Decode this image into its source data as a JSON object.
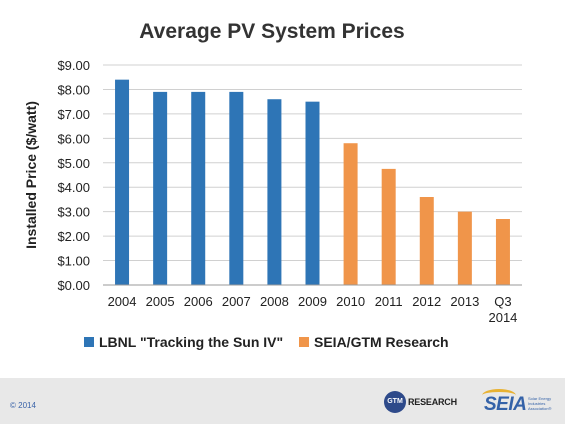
{
  "chart_data": {
    "type": "bar",
    "title": "Average PV System Prices",
    "ylabel": "Installed Price ($/watt)",
    "xlabel": "",
    "ylim": [
      0,
      9
    ],
    "ytick_values": [
      0,
      1,
      2,
      3,
      4,
      5,
      6,
      7,
      8,
      9
    ],
    "ytick_labels": [
      "$0.00",
      "$1.00",
      "$2.00",
      "$3.00",
      "$4.00",
      "$5.00",
      "$6.00",
      "$7.00",
      "$8.00",
      "$9.00"
    ],
    "categories": [
      "2004",
      "2005",
      "2006",
      "2007",
      "2008",
      "2009",
      "2010",
      "2011",
      "2012",
      "2013",
      "Q3 2014"
    ],
    "category_lines": [
      [
        "2004"
      ],
      [
        "2005"
      ],
      [
        "2006"
      ],
      [
        "2007"
      ],
      [
        "2008"
      ],
      [
        "2009"
      ],
      [
        "2010"
      ],
      [
        "2011"
      ],
      [
        "2012"
      ],
      [
        "2013"
      ],
      [
        "Q3",
        "2014"
      ]
    ],
    "grid": true,
    "legend_position": "bottom",
    "series": [
      {
        "name": "LBNL \"Tracking the Sun IV\"",
        "color": "#2e75b6",
        "values": [
          8.4,
          7.9,
          7.9,
          7.9,
          7.6,
          7.5,
          null,
          null,
          null,
          null,
          null
        ]
      },
      {
        "name": "SEIA/GTM Research",
        "color": "#f0954a",
        "values": [
          null,
          null,
          null,
          null,
          null,
          null,
          5.8,
          4.75,
          3.6,
          3.0,
          2.7
        ]
      }
    ]
  },
  "footer": {
    "copyright": "© 2014",
    "gtm_logo_text": "RESEARCH",
    "gtm_circle_text": "GTM",
    "seia_logo_text": "SEIA",
    "seia_subtext": "Solar Energy Industries Association®"
  }
}
